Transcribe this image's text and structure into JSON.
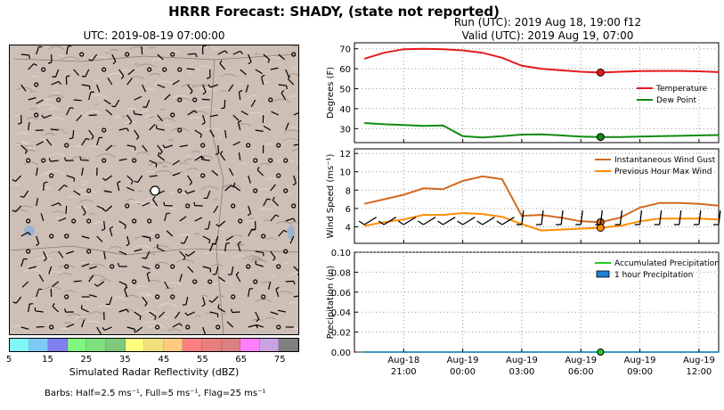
{
  "title": "HRRR Forecast: SHADY, (state not reported)",
  "run_line": "Run (UTC): 2019 Aug 18, 19:00 f12",
  "valid_line": "Valid (UTC): 2019 Aug 19, 07:00",
  "map": {
    "title": "UTC: 2019-08-19 07:00:00",
    "colorbar_label": "Simulated Radar Reflectivity (dBZ)",
    "colorbar_ticks": [
      "5",
      "15",
      "25",
      "35",
      "45",
      "55",
      "65",
      "75"
    ],
    "colorbar_colors": [
      "#7ff7f7",
      "#7fc9f7",
      "#8080ef",
      "#7ff77f",
      "#7fe07f",
      "#7fc97f",
      "#fdfd7f",
      "#f2e07f",
      "#fdca7f",
      "#fd7f7f",
      "#e87f7f",
      "#d98080",
      "#fd7ffd",
      "#c9a3e0",
      "#808080"
    ],
    "barb_note": "Barbs: Half=2.5 ms⁻¹, Full=5 ms⁻¹, Flag=25 ms⁻¹"
  },
  "chart_data": [
    {
      "type": "line",
      "ylabel": "Degrees (F)",
      "ylim": [
        23,
        73
      ],
      "yticks": [
        30,
        40,
        50,
        60,
        70
      ],
      "x_hours": [
        0,
        1,
        2,
        3,
        4,
        5,
        6,
        7,
        8,
        9,
        10,
        11,
        12,
        13,
        14,
        15,
        16,
        17,
        18
      ],
      "xlim": [
        -0.5,
        18
      ],
      "xtick_hours": [
        2,
        5,
        8,
        11,
        14,
        17
      ],
      "xtick_labels": [
        [
          "Aug-18",
          "21:00"
        ],
        [
          "Aug-19",
          "00:00"
        ],
        [
          "Aug-19",
          "03:00"
        ],
        [
          "Aug-19",
          "06:00"
        ],
        [
          "Aug-19",
          "09:00"
        ],
        [
          "Aug-19",
          "12:00"
        ]
      ],
      "grid": true,
      "legend_position": "center-right",
      "marker_hour": 12,
      "series": [
        {
          "name": "Temperature",
          "color": "#e31a1c",
          "values": [
            65,
            68,
            69.8,
            70,
            69.8,
            69.2,
            68,
            65.5,
            61.5,
            60,
            59.2,
            58.5,
            58.1,
            58.5,
            58.8,
            58.9,
            58.9,
            58.7,
            58.3
          ]
        },
        {
          "name": "Dew Point",
          "color": "#138a13",
          "values": [
            32.8,
            32.2,
            31.8,
            31.4,
            31.6,
            26.2,
            25.6,
            26.2,
            27,
            27.1,
            26.6,
            26,
            25.8,
            25.8,
            26,
            26.2,
            26.4,
            26.6,
            26.8
          ]
        }
      ]
    },
    {
      "type": "line",
      "ylabel": "Wind Speed (ms⁻¹)",
      "ylim": [
        2.2,
        12.5
      ],
      "yticks": [
        4,
        6,
        8,
        10,
        12
      ],
      "x_hours": [
        0,
        1,
        2,
        3,
        4,
        5,
        6,
        7,
        8,
        9,
        10,
        11,
        12,
        13,
        14,
        15,
        16,
        17,
        18
      ],
      "grid": true,
      "legend_position": "top-right",
      "marker_hour": 12,
      "series": [
        {
          "name": "Instantaneous Wind Gust",
          "color": "#d2691e",
          "values": [
            6.5,
            7,
            7.5,
            8.2,
            8.1,
            9,
            9.5,
            9.2,
            5.2,
            5.3,
            5,
            4.6,
            4.5,
            5,
            6.1,
            6.6,
            6.6,
            6.5,
            6.3
          ]
        },
        {
          "name": "Previous Hour Max Wind",
          "color": "#ff8c00",
          "values": [
            4.1,
            4.5,
            4.8,
            5.3,
            5.3,
            5.5,
            5.4,
            5.1,
            4.3,
            3.6,
            3.7,
            3.8,
            3.9,
            4.1,
            4.6,
            4.9,
            4.9,
            4.9,
            4.8
          ]
        }
      ]
    },
    {
      "type": "bar",
      "ylabel": "Precipitation (in)",
      "ylim": [
        0,
        0.1
      ],
      "yticks": [
        "0.00",
        "0.02",
        "0.04",
        "0.06",
        "0.08",
        "0.10"
      ],
      "x_hours": [
        0,
        1,
        2,
        3,
        4,
        5,
        6,
        7,
        8,
        9,
        10,
        11,
        12,
        13,
        14,
        15,
        16,
        17,
        18
      ],
      "grid": true,
      "legend_position": "top-right",
      "marker_hour": 12,
      "series": [
        {
          "name": "Accumulated Precipitation",
          "color": "#22cc22",
          "values": [
            0,
            0,
            0,
            0,
            0,
            0,
            0,
            0,
            0,
            0,
            0,
            0,
            0,
            0,
            0,
            0,
            0,
            0,
            0
          ]
        },
        {
          "name": "1 hour Precipitation",
          "color": "#1e7fd6",
          "values": [
            0,
            0,
            0,
            0,
            0,
            0,
            0,
            0,
            0,
            0,
            0,
            0,
            0,
            0,
            0,
            0,
            0,
            0,
            0
          ]
        }
      ]
    }
  ]
}
